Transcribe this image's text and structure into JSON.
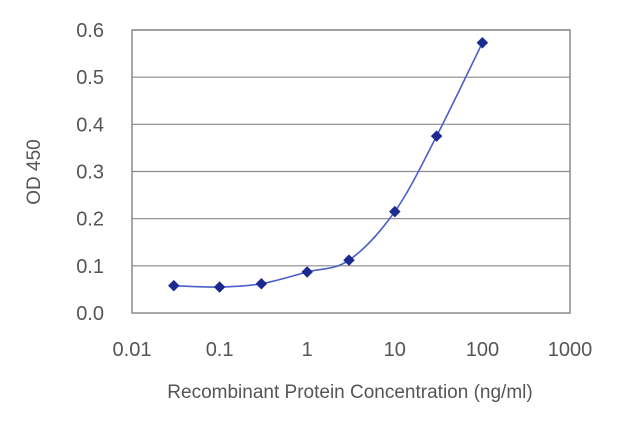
{
  "chart_data": {
    "type": "scatter",
    "title": "",
    "xlabel": "Recombinant Protein Concentration (ng/ml)",
    "ylabel": "OD 450",
    "x_scale": "log",
    "xlim": [
      0.01,
      1000
    ],
    "ylim": [
      0.0,
      0.6
    ],
    "x_ticks": [
      "0.01",
      "0.1",
      "1",
      "10",
      "100",
      "1000"
    ],
    "y_ticks": [
      "0.0",
      "0.1",
      "0.2",
      "0.3",
      "0.4",
      "0.5",
      "0.6"
    ],
    "grid": "horizontal",
    "series": [
      {
        "color": "#1a2a8f",
        "marker": "diamond",
        "line": "smooth",
        "x": [
          0.03,
          0.1,
          0.3,
          1,
          3,
          10,
          30,
          100
        ],
        "y": [
          0.058,
          0.055,
          0.062,
          0.087,
          0.112,
          0.215,
          0.375,
          0.573
        ]
      }
    ]
  }
}
